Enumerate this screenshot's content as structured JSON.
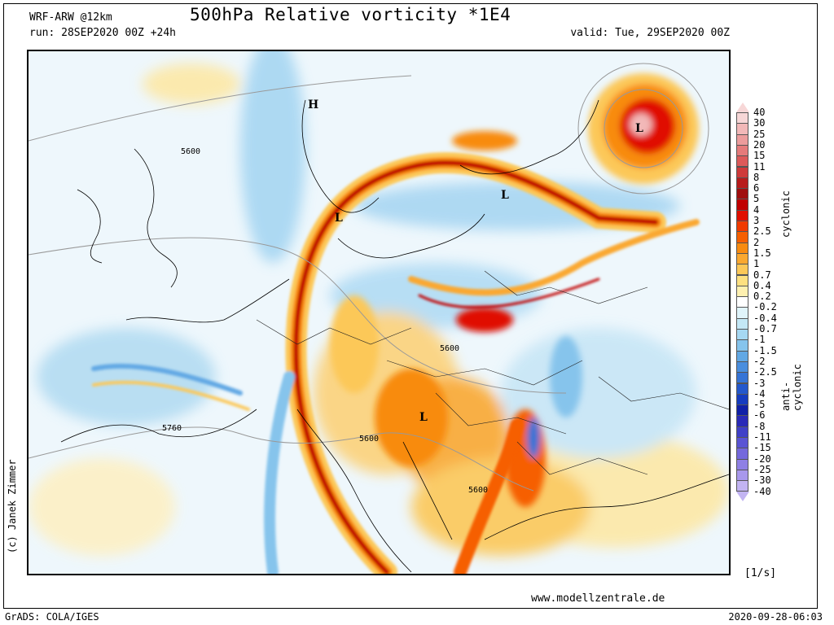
{
  "header": {
    "model": "WRF-ARW @12km",
    "run": "run: 28SEP2020 00Z +24h",
    "title": "500hPa Relative vorticity *1E4",
    "valid": "valid: Tue, 29SEP2020 00Z"
  },
  "footer": {
    "author": "(c) Janek Zimmer",
    "website": "www.modellzentrale.de",
    "grads": "GrADS: COLA/IGES",
    "timestamp": "2020-09-28-06:03"
  },
  "legend": {
    "units": "[1/s]",
    "label_cyclonic": "cyclonic",
    "label_anticyclonic": "anti-cyclonic",
    "levels": [
      "40",
      "30",
      "25",
      "20",
      "15",
      "11",
      "8",
      "6",
      "5",
      "4",
      "3",
      "2.5",
      "2",
      "1.5",
      "1",
      "0.7",
      "0.4",
      "0.2",
      "-0.2",
      "-0.4",
      "-0.7",
      "-1",
      "-1.5",
      "-2",
      "-2.5",
      "-3",
      "-4",
      "-5",
      "-6",
      "-8",
      "-11",
      "-15",
      "-20",
      "-25",
      "-30",
      "-40"
    ],
    "colors": [
      "#f7d7d7",
      "#f2b8b8",
      "#ec9c9c",
      "#e57b7b",
      "#dd5a5a",
      "#cf3a3a",
      "#b81b1b",
      "#a00e0e",
      "#c00000",
      "#e01000",
      "#f03a00",
      "#f65f00",
      "#f88b10",
      "#faa830",
      "#fcc858",
      "#fde080",
      "#fef0b0",
      "#ffffff",
      "#e0f4fa",
      "#c4e8f6",
      "#a6d8f2",
      "#86c4ec",
      "#62a8e4",
      "#4a8ede",
      "#3674d6",
      "#2458cc",
      "#163cc0",
      "#1020a8",
      "#2a2ab8",
      "#4040c8",
      "#5a54d4",
      "#7468dc",
      "#8e80e4",
      "#a898ec",
      "#c2b4f2"
    ]
  },
  "map": {
    "pressure_systems": [
      {
        "label": "H"
      },
      {
        "label": "L"
      },
      {
        "label": "L"
      },
      {
        "label": "L"
      },
      {
        "label": "L"
      }
    ],
    "contour_labels": [
      "5600",
      "5600",
      "5760",
      "5600",
      "5600"
    ]
  }
}
